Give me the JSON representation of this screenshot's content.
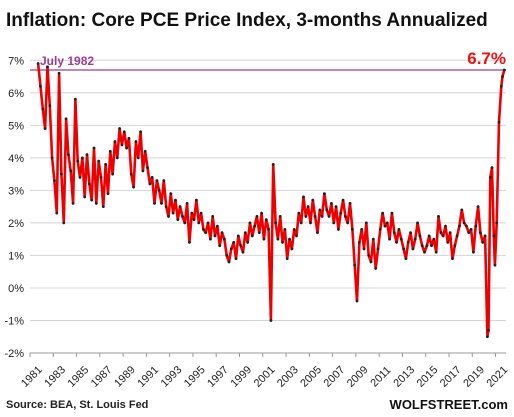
{
  "chart_data": {
    "type": "line",
    "title": "Inflation: Core PCE Price Index, 3-months Annualized",
    "xlabel": "",
    "ylabel": "",
    "x_ticks": [
      "1981",
      "1983",
      "1985",
      "1987",
      "1989",
      "1991",
      "1993",
      "1995",
      "1997",
      "1999",
      "2001",
      "2003",
      "2005",
      "2007",
      "2009",
      "2011",
      "2013",
      "2015",
      "2017",
      "2019",
      "2021"
    ],
    "y_ticks": [
      "-2%",
      "-1%",
      "0%",
      "1%",
      "2%",
      "3%",
      "4%",
      "5%",
      "6%",
      "7%"
    ],
    "xlim": [
      1981,
      2021.9
    ],
    "ylim": [
      -2,
      7.5
    ],
    "grid": true,
    "series": [
      {
        "color": "#ee0000",
        "marker_color": "#222222",
        "points": [
          [
            1981.7,
            6.9
          ],
          [
            1981.9,
            6.2
          ],
          [
            1982.1,
            5.5
          ],
          [
            1982.3,
            4.9
          ],
          [
            1982.5,
            6.8
          ],
          [
            1982.7,
            5.6
          ],
          [
            1982.9,
            4.0
          ],
          [
            1983.1,
            3.3
          ],
          [
            1983.3,
            2.3
          ],
          [
            1983.5,
            6.6
          ],
          [
            1983.7,
            3.5
          ],
          [
            1983.9,
            2.0
          ],
          [
            1984.1,
            5.2
          ],
          [
            1984.3,
            4.1
          ],
          [
            1984.5,
            3.6
          ],
          [
            1984.7,
            2.6
          ],
          [
            1984.9,
            5.8
          ],
          [
            1985.1,
            3.9
          ],
          [
            1985.3,
            3.4
          ],
          [
            1985.5,
            4.0
          ],
          [
            1985.7,
            2.8
          ],
          [
            1985.9,
            4.1
          ],
          [
            1986.1,
            3.2
          ],
          [
            1986.3,
            2.7
          ],
          [
            1986.5,
            4.3
          ],
          [
            1986.7,
            2.6
          ],
          [
            1986.9,
            3.9
          ],
          [
            1987.1,
            3.4
          ],
          [
            1987.3,
            2.5
          ],
          [
            1987.5,
            3.8
          ],
          [
            1987.7,
            2.9
          ],
          [
            1987.9,
            4.2
          ],
          [
            1988.1,
            3.5
          ],
          [
            1988.3,
            4.5
          ],
          [
            1988.5,
            4.0
          ],
          [
            1988.7,
            4.9
          ],
          [
            1988.9,
            4.4
          ],
          [
            1989.1,
            4.8
          ],
          [
            1989.3,
            4.3
          ],
          [
            1989.5,
            4.6
          ],
          [
            1989.7,
            3.5
          ],
          [
            1989.9,
            3.1
          ],
          [
            1990.1,
            4.5
          ],
          [
            1990.3,
            4.0
          ],
          [
            1990.5,
            4.8
          ],
          [
            1990.7,
            3.6
          ],
          [
            1990.9,
            4.2
          ],
          [
            1991.1,
            3.7
          ],
          [
            1991.3,
            3.2
          ],
          [
            1991.5,
            3.4
          ],
          [
            1991.7,
            2.6
          ],
          [
            1991.9,
            3.3
          ],
          [
            1992.1,
            3.0
          ],
          [
            1992.3,
            2.6
          ],
          [
            1992.5,
            3.3
          ],
          [
            1992.7,
            2.5
          ],
          [
            1992.9,
            2.2
          ],
          [
            1993.1,
            2.9
          ],
          [
            1993.3,
            2.3
          ],
          [
            1993.5,
            2.7
          ],
          [
            1993.7,
            2.1
          ],
          [
            1993.9,
            2.5
          ],
          [
            1994.1,
            2.2
          ],
          [
            1994.3,
            2.0
          ],
          [
            1994.5,
            2.6
          ],
          [
            1994.7,
            1.4
          ],
          [
            1994.9,
            2.3
          ],
          [
            1995.1,
            2.1
          ],
          [
            1995.3,
            2.7
          ],
          [
            1995.5,
            2.0
          ],
          [
            1995.7,
            2.3
          ],
          [
            1995.9,
            1.8
          ],
          [
            1996.1,
            1.7
          ],
          [
            1996.3,
            2.0
          ],
          [
            1996.5,
            1.5
          ],
          [
            1996.7,
            2.2
          ],
          [
            1996.9,
            1.6
          ],
          [
            1997.1,
            1.9
          ],
          [
            1997.3,
            1.3
          ],
          [
            1997.5,
            1.7
          ],
          [
            1997.7,
            1.5
          ],
          [
            1997.9,
            1.0
          ],
          [
            1998.1,
            0.8
          ],
          [
            1998.3,
            1.2
          ],
          [
            1998.5,
            1.4
          ],
          [
            1998.7,
            0.9
          ],
          [
            1998.9,
            1.6
          ],
          [
            1999.1,
            1.3
          ],
          [
            1999.3,
            1.1
          ],
          [
            1999.5,
            1.7
          ],
          [
            1999.7,
            1.4
          ],
          [
            1999.9,
            2.0
          ],
          [
            2000.1,
            1.6
          ],
          [
            2000.3,
            1.9
          ],
          [
            2000.5,
            2.2
          ],
          [
            2000.7,
            1.7
          ],
          [
            2000.9,
            2.3
          ],
          [
            2001.1,
            1.5
          ],
          [
            2001.3,
            2.1
          ],
          [
            2001.5,
            1.8
          ],
          [
            2001.7,
            -1.0
          ],
          [
            2001.9,
            3.8
          ],
          [
            2002.1,
            2.0
          ],
          [
            2002.3,
            1.5
          ],
          [
            2002.5,
            2.2
          ],
          [
            2002.7,
            1.4
          ],
          [
            2002.9,
            1.8
          ],
          [
            2003.1,
            0.9
          ],
          [
            2003.3,
            1.5
          ],
          [
            2003.5,
            1.2
          ],
          [
            2003.7,
            1.8
          ],
          [
            2003.9,
            1.6
          ],
          [
            2004.1,
            2.3
          ],
          [
            2004.3,
            2.0
          ],
          [
            2004.5,
            2.8
          ],
          [
            2004.7,
            2.2
          ],
          [
            2004.9,
            2.5
          ],
          [
            2005.1,
            2.0
          ],
          [
            2005.3,
            2.7
          ],
          [
            2005.5,
            2.2
          ],
          [
            2005.7,
            1.7
          ],
          [
            2005.9,
            2.4
          ],
          [
            2006.1,
            2.2
          ],
          [
            2006.3,
            2.9
          ],
          [
            2006.5,
            2.4
          ],
          [
            2006.7,
            2.2
          ],
          [
            2006.9,
            2.6
          ],
          [
            2007.1,
            2.0
          ],
          [
            2007.3,
            2.5
          ],
          [
            2007.5,
            1.8
          ],
          [
            2007.7,
            2.3
          ],
          [
            2007.9,
            2.7
          ],
          [
            2008.1,
            2.2
          ],
          [
            2008.3,
            2.0
          ],
          [
            2008.5,
            2.6
          ],
          [
            2008.7,
            1.8
          ],
          [
            2008.9,
            0.7
          ],
          [
            2009.1,
            -0.4
          ],
          [
            2009.3,
            1.4
          ],
          [
            2009.5,
            1.8
          ],
          [
            2009.7,
            1.2
          ],
          [
            2009.9,
            2.0
          ],
          [
            2010.1,
            1.0
          ],
          [
            2010.3,
            0.8
          ],
          [
            2010.5,
            1.5
          ],
          [
            2010.7,
            0.6
          ],
          [
            2010.9,
            1.2
          ],
          [
            2011.1,
            1.8
          ],
          [
            2011.3,
            2.3
          ],
          [
            2011.5,
            1.9
          ],
          [
            2011.7,
            2.0
          ],
          [
            2011.9,
            1.5
          ],
          [
            2012.1,
            2.3
          ],
          [
            2012.3,
            1.7
          ],
          [
            2012.5,
            1.4
          ],
          [
            2012.7,
            1.8
          ],
          [
            2012.9,
            1.5
          ],
          [
            2013.1,
            1.2
          ],
          [
            2013.3,
            0.9
          ],
          [
            2013.5,
            1.4
          ],
          [
            2013.7,
            1.7
          ],
          [
            2013.9,
            1.2
          ],
          [
            2014.1,
            1.5
          ],
          [
            2014.3,
            2.0
          ],
          [
            2014.5,
            1.6
          ],
          [
            2014.7,
            1.3
          ],
          [
            2014.9,
            1.1
          ],
          [
            2015.1,
            1.3
          ],
          [
            2015.3,
            1.6
          ],
          [
            2015.5,
            1.3
          ],
          [
            2015.7,
            1.5
          ],
          [
            2015.9,
            1.1
          ],
          [
            2016.1,
            2.2
          ],
          [
            2016.3,
            1.7
          ],
          [
            2016.5,
            1.6
          ],
          [
            2016.7,
            1.9
          ],
          [
            2016.9,
            1.4
          ],
          [
            2017.1,
            1.7
          ],
          [
            2017.3,
            0.9
          ],
          [
            2017.5,
            1.3
          ],
          [
            2017.7,
            1.6
          ],
          [
            2017.9,
            1.9
          ],
          [
            2018.1,
            2.4
          ],
          [
            2018.3,
            2.0
          ],
          [
            2018.5,
            1.9
          ],
          [
            2018.7,
            1.7
          ],
          [
            2018.9,
            1.8
          ],
          [
            2019.1,
            1.1
          ],
          [
            2019.3,
            1.9
          ],
          [
            2019.5,
            2.5
          ],
          [
            2019.7,
            1.7
          ],
          [
            2019.9,
            1.4
          ],
          [
            2020.1,
            1.6
          ],
          [
            2020.3,
            -1.5
          ],
          [
            2020.4,
            -1.3
          ],
          [
            2020.55,
            3.4
          ],
          [
            2020.7,
            3.7
          ],
          [
            2020.85,
            1.6
          ],
          [
            2020.95,
            0.7
          ],
          [
            2021.1,
            2.0
          ],
          [
            2021.3,
            5.1
          ],
          [
            2021.5,
            6.2
          ],
          [
            2021.6,
            6.5
          ],
          [
            2021.75,
            6.7
          ]
        ]
      }
    ],
    "reference_line": {
      "y": 6.7,
      "label": "July 1982",
      "color": "#9b3d97"
    },
    "last_value_label": "6.7%",
    "last_value_color": "#ee1111",
    "source": "Source: BEA, St. Louis Fed",
    "brand": "WOLFSTREET.com",
    "grid_color": "#d4d4d4"
  }
}
